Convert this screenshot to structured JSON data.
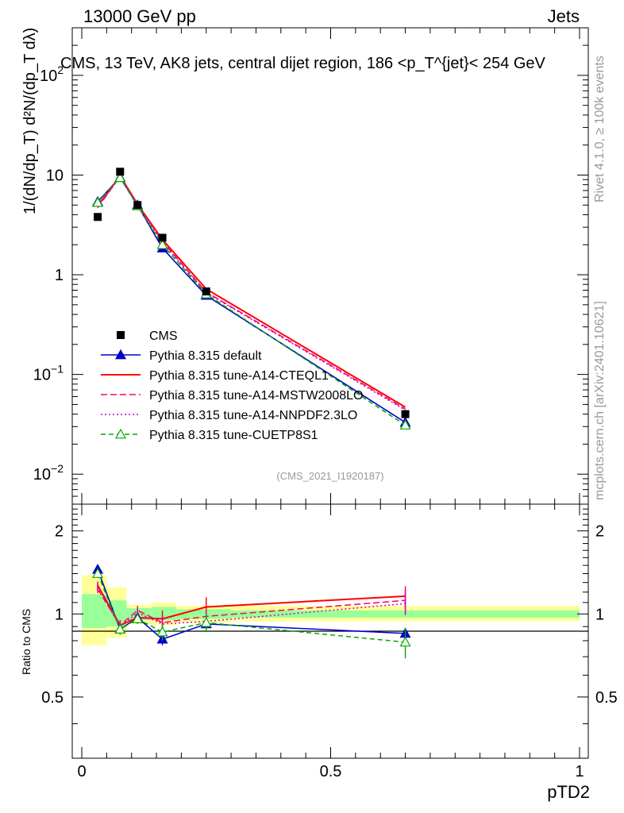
{
  "header": {
    "left": "13000 GeV pp",
    "right": "Jets",
    "side_top": "Rivet 4.1.0, ≥ 100k events",
    "side_bottom": "mcplots.cern.ch [arXiv:2401.10621]"
  },
  "chart_data": {
    "type": "line",
    "title": "CMS, 13 TeV, AK8 jets, central dijet region, 186 <p_T^{jet}< 254 GeV",
    "ylabel_top": "1/(dN/dp_T) d²N/(dp_T dλ)",
    "ylabel_bottom": "Ratio to CMS",
    "xlabel": "pTD2",
    "watermark": "(CMS_2021_I1920187)",
    "xlim": [
      0,
      1
    ],
    "ylim_top": [
      0.005,
      300
    ],
    "ylim_bottom": [
      0.3,
      2.5
    ],
    "x_ticks": [
      {
        "value": 0,
        "label": "0"
      },
      {
        "value": 0.5,
        "label": "0.5"
      },
      {
        "value": 1,
        "label": "1"
      }
    ],
    "top_ticks": [
      {
        "value": 0.01,
        "base": "10",
        "exp": "−2"
      },
      {
        "value": 0.1,
        "base": "10",
        "exp": "−1"
      },
      {
        "value": 1,
        "base": "1",
        "exp": ""
      },
      {
        "value": 10,
        "base": "10",
        "exp": ""
      },
      {
        "value": 100,
        "base": "10",
        "exp": "2"
      }
    ],
    "ratio_ticks": [
      {
        "value": 0.5,
        "label": "0.5"
      },
      {
        "value": 1,
        "label": "1"
      },
      {
        "value": 2,
        "label": "2"
      }
    ],
    "x": [
      0.032,
      0.077,
      0.112,
      0.162,
      0.25,
      0.65
    ],
    "bands": {
      "edges": [
        0,
        0.05,
        0.09,
        0.14,
        0.19,
        0.3,
        1.0
      ],
      "yellow": [
        [
          0.77,
          1.38
        ],
        [
          0.82,
          1.25
        ],
        [
          0.92,
          1.08
        ],
        [
          0.91,
          1.1
        ],
        [
          0.93,
          1.07
        ],
        [
          0.94,
          1.07
        ]
      ],
      "green": [
        [
          0.89,
          1.18
        ],
        [
          0.9,
          1.12
        ],
        [
          0.95,
          1.05
        ],
        [
          0.95,
          1.06
        ],
        [
          0.96,
          1.04
        ],
        [
          0.97,
          1.03
        ]
      ]
    },
    "data": {
      "name": "CMS",
      "values": [
        3.8,
        10.8,
        5.0,
        2.35,
        0.68,
        0.04
      ],
      "color": "#000000"
    },
    "series": [
      {
        "name": "Pythia 8.315 default",
        "color": "#0000cc",
        "dash": "",
        "marker": "triangle-filled",
        "values": [
          5.4,
          9.5,
          5.0,
          1.85,
          0.62,
          0.033
        ],
        "ratio": [
          1.45,
          0.88,
          0.97,
          0.81,
          0.92,
          0.85
        ],
        "ratio_err": [
          0.04,
          0.03,
          0.03,
          0.04,
          0.05,
          0.04
        ]
      },
      {
        "name": "Pythia 8.315 tune-A14-CTEQL1",
        "color": "#ff0000",
        "dash": "",
        "marker": "none",
        "values": [
          4.9,
          9.8,
          5.1,
          2.25,
          0.72,
          0.047
        ],
        "ratio": [
          1.27,
          0.91,
          0.97,
          0.96,
          1.06,
          1.16
        ],
        "ratio_err": [
          0.04,
          0.04,
          0.04,
          0.07,
          0.09,
          0.1
        ]
      },
      {
        "name": "Pythia 8.315 tune-A14-MSTW2008LO",
        "color": "#ff0066",
        "dash": "8,4",
        "marker": "none",
        "values": [
          4.7,
          9.7,
          5.1,
          2.15,
          0.67,
          0.045
        ],
        "ratio": [
          1.23,
          0.91,
          1.03,
          0.93,
          0.98,
          1.12
        ],
        "ratio_err": [
          0.04,
          0.04,
          0.04,
          0.06,
          0.07,
          0.1
        ]
      },
      {
        "name": "Pythia 8.315 tune-A14-NNPDF2.3LO",
        "color": "#cc00cc",
        "dash": "2,3",
        "marker": "none",
        "values": [
          4.8,
          9.6,
          5.0,
          2.1,
          0.66,
          0.044
        ],
        "ratio": [
          1.25,
          0.9,
          1.01,
          0.92,
          0.94,
          1.09
        ],
        "ratio_err": [
          0.04,
          0.04,
          0.04,
          0.06,
          0.08,
          0.1
        ]
      },
      {
        "name": "Pythia 8.315 tune-CUETP8S1",
        "color": "#00aa00",
        "dash": "6,4",
        "marker": "triangle-open",
        "values": [
          5.3,
          9.4,
          4.9,
          2.0,
          0.64,
          0.031
        ],
        "ratio": [
          1.4,
          0.88,
          0.96,
          0.86,
          0.93,
          0.79
        ],
        "ratio_err": [
          0.04,
          0.04,
          0.04,
          0.06,
          0.07,
          0.1
        ]
      }
    ]
  }
}
